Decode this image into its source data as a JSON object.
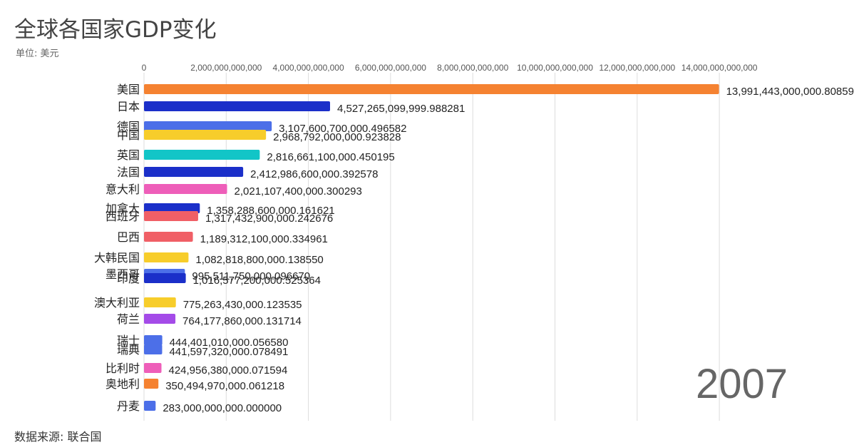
{
  "header": {
    "title": "全球各国家GDP变化",
    "unit": "单位: 美元"
  },
  "footer": {
    "source": "数据来源: 联合国"
  },
  "year": "2007",
  "chart_data": {
    "type": "bar",
    "orientation": "horizontal",
    "title": "全球各国家GDP变化",
    "xlim": [
      0,
      14000000000000
    ],
    "xticks": [
      0,
      2000000000000,
      4000000000000,
      6000000000000,
      8000000000000,
      10000000000000,
      12000000000000,
      14000000000000
    ],
    "xtick_labels": [
      "0",
      "2,000,000,000,000",
      "4,000,000,000,000",
      "6,000,000,000,000",
      "8,000,000,000,000",
      "10,000,000,000,000",
      "12,000,000,000,000",
      "14,000,000,000,000"
    ],
    "grid": true,
    "categories": [
      "美国",
      "日本",
      "德国",
      "中国",
      "英国",
      "法国",
      "意大利",
      "加拿大",
      "西班牙",
      "巴西",
      "大韩民国",
      "墨西哥",
      "印度",
      "澳大利亚",
      "荷兰",
      "瑞士",
      "瑞典",
      "比利时",
      "奥地利",
      "丹麦"
    ],
    "values": [
      13991443000000.809,
      4527265099999.988,
      3107600700000.4966,
      2968792000000.924,
      2816661100000.45,
      2412986600000.3926,
      2021107400000.3003,
      1358288600000.1616,
      1317432900000.2427,
      1189312100000.335,
      1082818800000.1385,
      995511750000.0967,
      1016577200000.5254,
      775263430000.1235,
      764177860000.1317,
      444401010000.0566,
      441597320000.0785,
      424956380000.0716,
      350494970000.0612,
      283000000000.0
    ],
    "value_labels": [
      "13,991,443,000,000.80859",
      "4,527,265,099,999.988281",
      "3,107,600,700,000.496582",
      "2,968,792,000,000.923828",
      "2,816,661,100,000.450195",
      "2,412,986,600,000.392578",
      "2,021,107,400,000.300293",
      "1,358,288,600,000.161621",
      "1,317,432,900,000.242676",
      "1,189,312,100,000.334961",
      "1,082,818,800,000.138550",
      "995,511,750,000.096670",
      "1,016,577,200,000.525364",
      "775,263,430,000.123535",
      "764,177,860,000.131714",
      "444,401,010,000.056580",
      "441,597,320,000.078491",
      "424,956,380,000.071594",
      "350,494,970,000.061218",
      "283,000,000,000.000000"
    ],
    "colors": [
      "#f58231",
      "#1b2fc9",
      "#4c6fe8",
      "#f7cd2b",
      "#12c5c7",
      "#1b2fc9",
      "#ee5eb9",
      "#1b2fc9",
      "#f05f66",
      "#f05f66",
      "#f7cd2b",
      "#4c6fe8",
      "#1b2fc9",
      "#f7cd2b",
      "#a44be8",
      "#4c6fe8",
      "#4c6fe8",
      "#ee5eb9",
      "#f58231",
      "#4c6fe8"
    ]
  }
}
